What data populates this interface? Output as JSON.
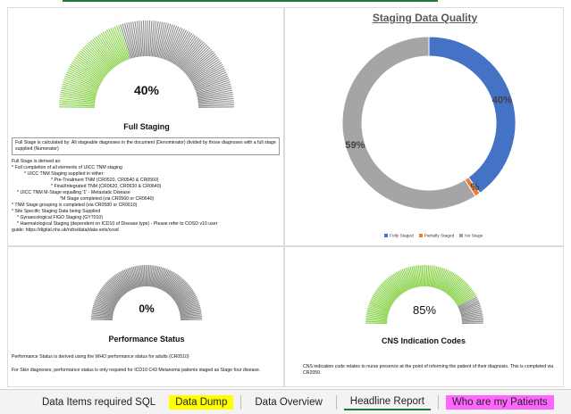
{
  "colors": {
    "green": "#8bd34c",
    "grey": "#8c8c8c",
    "blue": "#4472c4",
    "orange": "#ed7d31",
    "donut_grey": "#a5a5a5",
    "tab_yellow": "#ffff00",
    "tab_pink": "#ff66ff",
    "active_underline": "#1e7a3a"
  },
  "full_staging": {
    "percent_label": "40%",
    "title": "Full Staging",
    "fraction": 0.4,
    "definition": "Full Stage is calculated by: All stageable diagnoses in the document (Denominator) divided by those diagnoses with a full stage supplied (Numerator)",
    "derivation": [
      "Full Stage is derived as:",
      "* Full completion of all elements of UICC TNM staging",
      "* UICC TNM Staging supplied in either:",
      "* Pre-Treatment TNM (CR0520, CR0540 & CR0560)",
      "* Final/Integrated TNM (CR0620, CR0630 & CR0640)",
      "* UICC TNM M-Stage equalling '1' - Metastatic Disease",
      "*M Stage completed (via CR0560 or CR0640)",
      "* TNM Stage grouping is completed (via CR0580 or CR0610)",
      "* Site Specific Staging Data being Supplied",
      "* Gynaecological FIGO Staging (GY7010)",
      "* Haematological Staging (dependent on ICD10 of Disease type) - Please refer to COSD v10 user",
      "guide: https://digital.nhs.uk/ndrs/data/data-sets/cosd"
    ]
  },
  "staging_quality": {
    "title": "Staging Data Quality"
  },
  "chart_data": {
    "type": "pie",
    "title": "Staging Data Quality",
    "categories": [
      "Fully Staged",
      "Partially Staged",
      "No Stage"
    ],
    "values": [
      40,
      1,
      59
    ],
    "labels": [
      "40%",
      "1%",
      "59%"
    ],
    "legend_position": "bottom"
  },
  "performance_status": {
    "percent_label": "0%",
    "title": "Performance Status",
    "fraction": 0.0,
    "note1": "Performance Status is derived using the WHO performance status for adults (CR0510)",
    "note2": "For Skin diagnoses, performance status is only required for ICD10 C43 Melanoma patients staged as Stage four disease."
  },
  "cns": {
    "percent_label": "85%",
    "title": "CNS Indication Codes",
    "fraction": 0.85,
    "note": "CNS indication code relates to nurse presence at the point of informing the patient of their diagnosis. This is completed via CR2050."
  },
  "tabs": [
    {
      "label": "Data Items required SQL",
      "style": "plain"
    },
    {
      "label": "Data Dump",
      "style": "yellow"
    },
    {
      "label": "Data Overview",
      "style": "plain"
    },
    {
      "label": "Headline Report",
      "style": "active"
    },
    {
      "label": "Who are my Patients",
      "style": "pink"
    }
  ]
}
